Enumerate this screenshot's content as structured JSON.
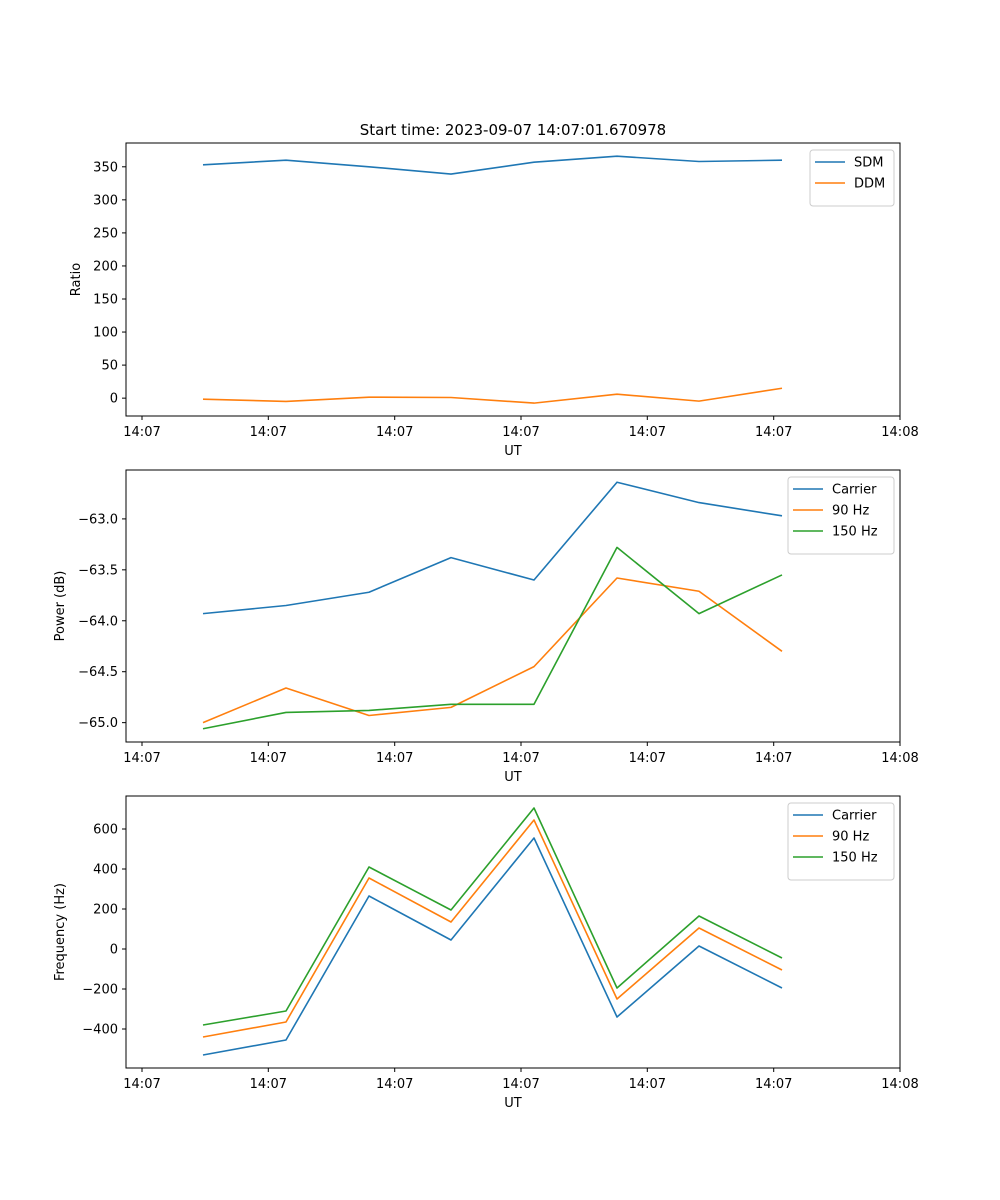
{
  "chart_data": [
    {
      "type": "line",
      "title": "Start time: 2023-09-07 14:07:01.670978",
      "xlabel": "UT",
      "ylabel": "Ratio",
      "x_tick_labels": [
        "14:07",
        "14:07",
        "14:07",
        "14:07",
        "14:07",
        "14:07",
        "14:08"
      ],
      "y_ticks": [
        0,
        50,
        100,
        150,
        200,
        250,
        300,
        350
      ],
      "ylim": [
        -27,
        386
      ],
      "legend_position": "top-right",
      "x_index": [
        1,
        2,
        3,
        4,
        5,
        6,
        7,
        8
      ],
      "series": [
        {
          "name": "SDM",
          "color": "#1f77b4",
          "values": [
            353,
            360,
            350,
            339,
            357,
            366,
            358,
            360
          ]
        },
        {
          "name": "DDM",
          "color": "#ff7f0e",
          "values": [
            -1.5,
            -5,
            1.5,
            1,
            -7.5,
            6,
            -4.5,
            15
          ]
        }
      ]
    },
    {
      "type": "line",
      "title": "",
      "xlabel": "UT",
      "ylabel": "Power (dB)",
      "x_tick_labels": [
        "14:07",
        "14:07",
        "14:07",
        "14:07",
        "14:07",
        "14:07",
        "14:08"
      ],
      "y_ticks": [
        -65.0,
        -64.5,
        -64.0,
        -63.5,
        -63.0
      ],
      "y_tick_labels": [
        "−65.0",
        "−64.5",
        "−64.0",
        "−63.5",
        "−63.0"
      ],
      "ylim": [
        -65.19,
        -62.52
      ],
      "legend_position": "top-right",
      "x_index": [
        1,
        2,
        3,
        4,
        5,
        6,
        7,
        8
      ],
      "series": [
        {
          "name": "Carrier",
          "color": "#1f77b4",
          "values": [
            -63.93,
            -63.85,
            -63.72,
            -63.38,
            -63.6,
            -62.64,
            -62.84,
            -62.97
          ]
        },
        {
          "name": "90 Hz",
          "color": "#ff7f0e",
          "values": [
            -65.0,
            -64.66,
            -64.93,
            -64.85,
            -64.45,
            -63.58,
            -63.71,
            -64.3
          ]
        },
        {
          "name": "150 Hz",
          "color": "#2ca02c",
          "values": [
            -65.06,
            -64.9,
            -64.88,
            -64.82,
            -64.82,
            -63.28,
            -63.93,
            -63.55
          ]
        }
      ]
    },
    {
      "type": "line",
      "title": "",
      "xlabel": "UT",
      "ylabel": "Frequency (Hz)",
      "x_tick_labels": [
        "14:07",
        "14:07",
        "14:07",
        "14:07",
        "14:07",
        "14:07",
        "14:08"
      ],
      "y_ticks": [
        -400,
        -200,
        0,
        200,
        400,
        600
      ],
      "y_tick_labels": [
        "−400",
        "−200",
        "0",
        "200",
        "400",
        "600"
      ],
      "ylim": [
        -595,
        765
      ],
      "legend_position": "top-right",
      "x_index": [
        1,
        2,
        3,
        4,
        5,
        6,
        7,
        8
      ],
      "series": [
        {
          "name": "Carrier",
          "color": "#1f77b4",
          "values": [
            -530,
            -455,
            265,
            45,
            555,
            -340,
            15,
            -195
          ]
        },
        {
          "name": "90 Hz",
          "color": "#ff7f0e",
          "values": [
            -440,
            -365,
            355,
            135,
            645,
            -250,
            105,
            -105
          ]
        },
        {
          "name": "150 Hz",
          "color": "#2ca02c",
          "values": [
            -380,
            -310,
            410,
            195,
            705,
            -195,
            165,
            -45
          ]
        }
      ]
    }
  ]
}
